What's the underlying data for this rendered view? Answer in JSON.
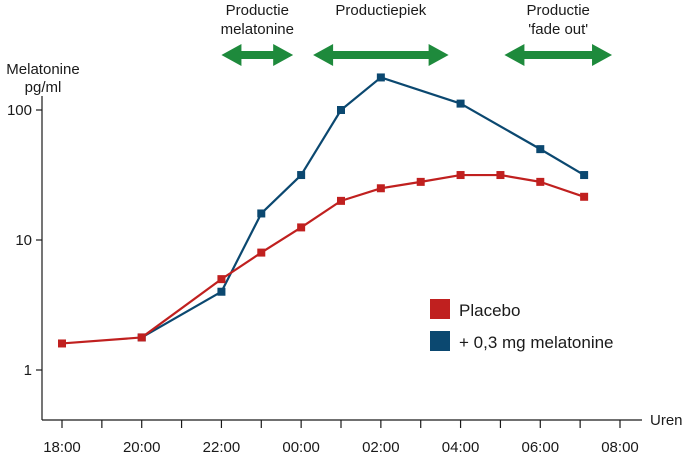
{
  "chart_data": {
    "type": "line",
    "ylabel": [
      "Melatonine",
      "pg/ml"
    ],
    "xlabel": "Uren",
    "y_scale": "log",
    "ylim": [
      0.55,
      160
    ],
    "y_ticks": [
      {
        "value": 1,
        "label": "1"
      },
      {
        "value": 10,
        "label": "10"
      },
      {
        "value": 100,
        "label": "100"
      }
    ],
    "x_unit": "hours",
    "xlim": [
      17.5,
      32.3
    ],
    "x_ticks": [
      {
        "value": 18,
        "label": "18:00"
      },
      {
        "value": 20,
        "label": "20:00"
      },
      {
        "value": 22,
        "label": "22:00"
      },
      {
        "value": 24,
        "label": "00:00"
      },
      {
        "value": 26,
        "label": "02:00"
      },
      {
        "value": 28,
        "label": "04:00"
      },
      {
        "value": 30,
        "label": "06:00"
      },
      {
        "value": 32,
        "label": "08:00"
      }
    ],
    "x_minor_ticks": [
      19,
      21,
      23,
      25,
      27,
      29,
      31
    ],
    "phases": [
      {
        "label": [
          "Productie",
          "melatonine"
        ],
        "x_start": 22,
        "x_end": 23.8
      },
      {
        "label": [
          "Productiepiek"
        ],
        "x_start": 24.3,
        "x_end": 27.7
      },
      {
        "label": [
          "Productie",
          "'fade out'"
        ],
        "x_start": 29.1,
        "x_end": 31.8
      }
    ],
    "series": [
      {
        "name": "Placebo",
        "color": "#c0201f",
        "x": [
          18,
          20,
          22,
          23,
          24,
          25,
          26,
          27,
          28,
          29,
          30,
          31.1
        ],
        "y": [
          1.6,
          1.78,
          5.0,
          8.0,
          12.5,
          20.0,
          25.0,
          28.0,
          31.6,
          31.6,
          28.0,
          21.5
        ]
      },
      {
        "name": "+ 0,3 mg melatonine",
        "color": "#0b4870",
        "x": [
          20,
          22,
          23,
          24,
          25,
          26,
          28,
          30,
          31.1
        ],
        "y": [
          1.78,
          4.0,
          16.0,
          31.6,
          100.0,
          178.0,
          112.0,
          50.0,
          31.6
        ]
      }
    ],
    "legend": {
      "position": "bottom-right"
    },
    "colors": {
      "axis": "#1a1a1a",
      "arrow": "#1e8a3c"
    },
    "grid": false
  }
}
